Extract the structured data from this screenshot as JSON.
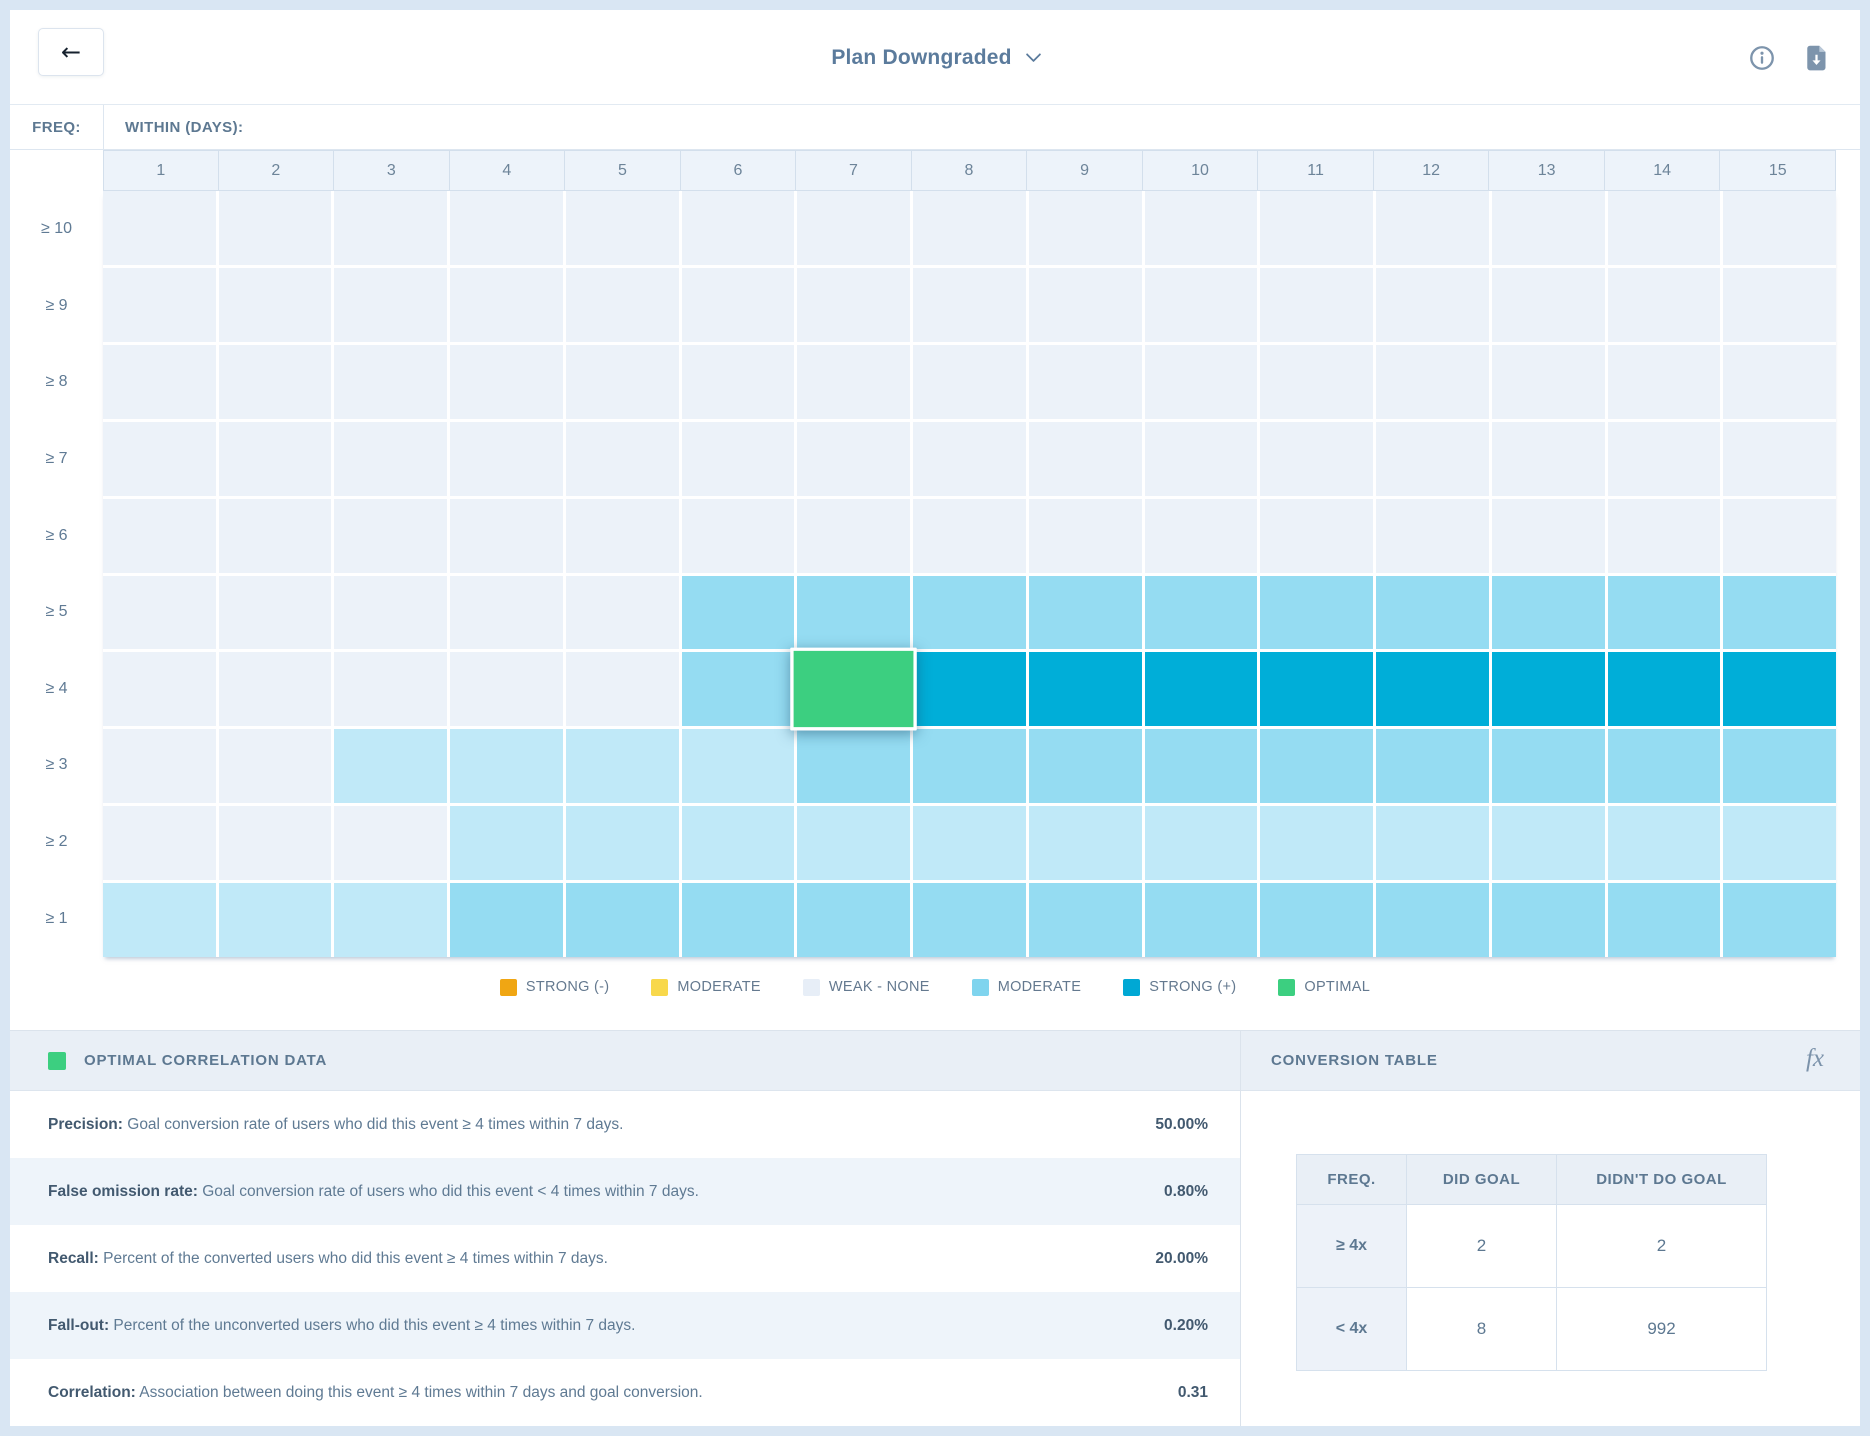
{
  "header": {
    "back_arrow": "←",
    "title": "Plan Downgraded"
  },
  "axis": {
    "freq_label": "FREQ:",
    "within_label": "WITHIN (DAYS):",
    "columns": [
      "1",
      "2",
      "3",
      "4",
      "5",
      "6",
      "7",
      "8",
      "9",
      "10",
      "11",
      "12",
      "13",
      "14",
      "15"
    ],
    "rows": [
      "≥ 10",
      "≥ 9",
      "≥ 8",
      "≥ 7",
      "≥ 6",
      "≥ 5",
      "≥ 4",
      "≥ 3",
      "≥ 2",
      "≥ 1"
    ]
  },
  "heatmap": {
    "colors": {
      "w": "#ecf2f9",
      "p": "#c0e9f8",
      "m": "#95dcf2",
      "s": "#00aed8",
      "o": "#3ccf80"
    },
    "cells": [
      [
        "w",
        "w",
        "w",
        "w",
        "w",
        "w",
        "w",
        "w",
        "w",
        "w",
        "w",
        "w",
        "w",
        "w",
        "w"
      ],
      [
        "w",
        "w",
        "w",
        "w",
        "w",
        "w",
        "w",
        "w",
        "w",
        "w",
        "w",
        "w",
        "w",
        "w",
        "w"
      ],
      [
        "w",
        "w",
        "w",
        "w",
        "w",
        "w",
        "w",
        "w",
        "w",
        "w",
        "w",
        "w",
        "w",
        "w",
        "w"
      ],
      [
        "w",
        "w",
        "w",
        "w",
        "w",
        "w",
        "w",
        "w",
        "w",
        "w",
        "w",
        "w",
        "w",
        "w",
        "w"
      ],
      [
        "w",
        "w",
        "w",
        "w",
        "w",
        "w",
        "w",
        "w",
        "w",
        "w",
        "w",
        "w",
        "w",
        "w",
        "w"
      ],
      [
        "w",
        "w",
        "w",
        "w",
        "w",
        "m",
        "m",
        "m",
        "m",
        "m",
        "m",
        "m",
        "m",
        "m",
        "m"
      ],
      [
        "w",
        "w",
        "w",
        "w",
        "w",
        "m",
        "o",
        "s",
        "s",
        "s",
        "s",
        "s",
        "s",
        "s",
        "s"
      ],
      [
        "w",
        "w",
        "p",
        "p",
        "p",
        "p",
        "m",
        "m",
        "m",
        "m",
        "m",
        "m",
        "m",
        "m",
        "m"
      ],
      [
        "w",
        "w",
        "w",
        "p",
        "p",
        "p",
        "p",
        "p",
        "p",
        "p",
        "p",
        "p",
        "p",
        "p",
        "p"
      ],
      [
        "p",
        "p",
        "p",
        "m",
        "m",
        "m",
        "m",
        "m",
        "m",
        "m",
        "m",
        "m",
        "m",
        "m",
        "m"
      ]
    ]
  },
  "legend": [
    {
      "label": "STRONG (-)",
      "color": "#f0a613"
    },
    {
      "label": "MODERATE",
      "color": "#f8d84b"
    },
    {
      "label": "WEAK - NONE",
      "color": "#e7eef7"
    },
    {
      "label": "MODERATE",
      "color": "#7fd4ee"
    },
    {
      "label": "STRONG (+)",
      "color": "#00a8d4"
    },
    {
      "label": "OPTIMAL",
      "color": "#3ccf80"
    }
  ],
  "optimal_panel": {
    "title": "OPTIMAL CORRELATION DATA",
    "swatch_color": "#3ccf80",
    "rows": [
      {
        "label": "Precision:",
        "desc": "Goal conversion rate of users who did this event ≥ 4 times within 7 days.",
        "value": "50.00%"
      },
      {
        "label": "False omission rate:",
        "desc": "Goal conversion rate of users who did this event < 4 times within 7 days.",
        "value": "0.80%"
      },
      {
        "label": "Recall:",
        "desc": "Percent of the converted users who did this event ≥ 4 times within 7 days.",
        "value": "20.00%"
      },
      {
        "label": "Fall-out:",
        "desc": "Percent of the unconverted users who did this event ≥ 4 times within 7 days.",
        "value": "0.20%"
      },
      {
        "label": "Correlation:",
        "desc": "Association between doing this event ≥ 4 times within 7 days and goal conversion.",
        "value": "0.31"
      }
    ]
  },
  "conversion_panel": {
    "title": "CONVERSION TABLE",
    "fx_icon": "fx",
    "table": {
      "headers": [
        "FREQ.",
        "DID GOAL",
        "DIDN'T DO GOAL"
      ],
      "rows": [
        {
          "freq": "≥ 4x",
          "did": "2",
          "didnt": "2"
        },
        {
          "freq": "< 4x",
          "did": "8",
          "didnt": "992"
        }
      ]
    }
  }
}
